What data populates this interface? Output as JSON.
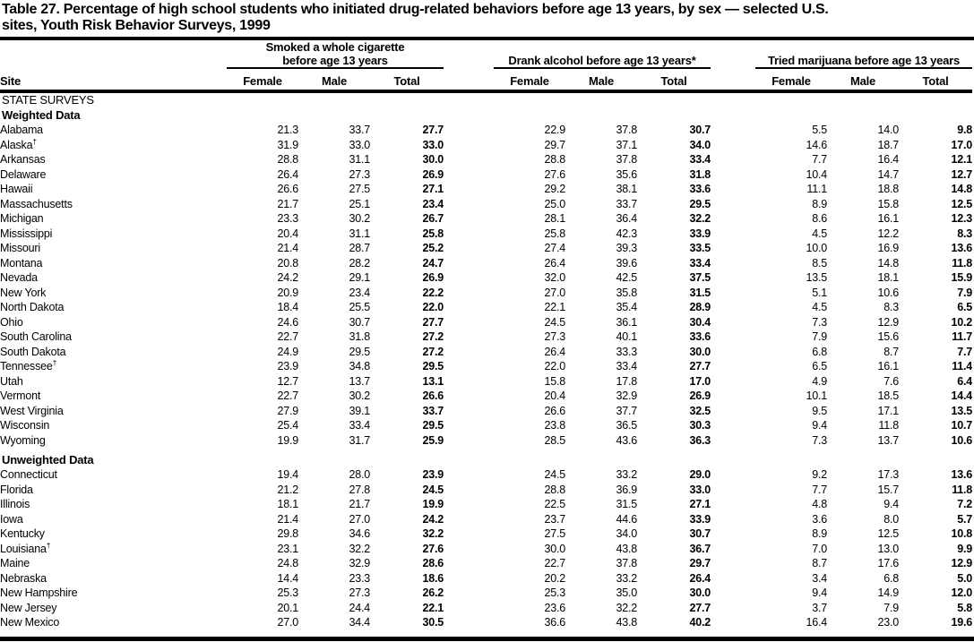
{
  "title": {
    "line1": "Table 27. Percentage of high school students who initiated drug-related behaviors before age 13 years, by sex — selected U.S.",
    "line2": "sites, Youth Risk Behavior Surveys, 1999"
  },
  "colors": {
    "text": "#000000",
    "background": "#ffffff",
    "rule": "#000000"
  },
  "table": {
    "site_header": "Site",
    "groups": [
      {
        "line1": "Smoked a whole cigarette",
        "line2": "before age 13 years"
      },
      {
        "line1": "",
        "line2": "Drank alcohol before age 13 years*"
      },
      {
        "line1": "",
        "line2": "Tried marijuana before age 13 years"
      }
    ],
    "col_headers": [
      "Female",
      "Male",
      "Total"
    ],
    "sections": [
      {
        "heading": "STATE SURVEYS",
        "subheading": "Weighted Data",
        "rows": [
          {
            "site": "Alabama",
            "mark": "",
            "values": [
              "21.3",
              "33.7",
              "27.7",
              "22.9",
              "37.8",
              "30.7",
              "5.5",
              "14.0",
              "9.8"
            ]
          },
          {
            "site": "Alaska",
            "mark": "†",
            "values": [
              "31.9",
              "33.0",
              "33.0",
              "29.7",
              "37.1",
              "34.0",
              "14.6",
              "18.7",
              "17.0"
            ]
          },
          {
            "site": "Arkansas",
            "mark": "",
            "values": [
              "28.8",
              "31.1",
              "30.0",
              "28.8",
              "37.8",
              "33.4",
              "7.7",
              "16.4",
              "12.1"
            ]
          },
          {
            "site": "Delaware",
            "mark": "",
            "values": [
              "26.4",
              "27.3",
              "26.9",
              "27.6",
              "35.6",
              "31.8",
              "10.4",
              "14.7",
              "12.7"
            ]
          },
          {
            "site": "Hawaii",
            "mark": "",
            "values": [
              "26.6",
              "27.5",
              "27.1",
              "29.2",
              "38.1",
              "33.6",
              "11.1",
              "18.8",
              "14.8"
            ]
          },
          {
            "site": "Massachusetts",
            "mark": "",
            "values": [
              "21.7",
              "25.1",
              "23.4",
              "25.0",
              "33.7",
              "29.5",
              "8.9",
              "15.8",
              "12.5"
            ]
          },
          {
            "site": "Michigan",
            "mark": "",
            "values": [
              "23.3",
              "30.2",
              "26.7",
              "28.1",
              "36.4",
              "32.2",
              "8.6",
              "16.1",
              "12.3"
            ]
          },
          {
            "site": "Mississippi",
            "mark": "",
            "values": [
              "20.4",
              "31.1",
              "25.8",
              "25.8",
              "42.3",
              "33.9",
              "4.5",
              "12.2",
              "8.3"
            ]
          },
          {
            "site": "Missouri",
            "mark": "",
            "values": [
              "21.4",
              "28.7",
              "25.2",
              "27.4",
              "39.3",
              "33.5",
              "10.0",
              "16.9",
              "13.6"
            ]
          },
          {
            "site": "Montana",
            "mark": "",
            "values": [
              "20.8",
              "28.2",
              "24.7",
              "26.4",
              "39.6",
              "33.4",
              "8.5",
              "14.8",
              "11.8"
            ]
          },
          {
            "site": "Nevada",
            "mark": "",
            "values": [
              "24.2",
              "29.1",
              "26.9",
              "32.0",
              "42.5",
              "37.5",
              "13.5",
              "18.1",
              "15.9"
            ]
          },
          {
            "site": "New York",
            "mark": "",
            "values": [
              "20.9",
              "23.4",
              "22.2",
              "27.0",
              "35.8",
              "31.5",
              "5.1",
              "10.6",
              "7.9"
            ]
          },
          {
            "site": "North Dakota",
            "mark": "",
            "values": [
              "18.4",
              "25.5",
              "22.0",
              "22.1",
              "35.4",
              "28.9",
              "4.5",
              "8.3",
              "6.5"
            ]
          },
          {
            "site": "Ohio",
            "mark": "",
            "values": [
              "24.6",
              "30.7",
              "27.7",
              "24.5",
              "36.1",
              "30.4",
              "7.3",
              "12.9",
              "10.2"
            ]
          },
          {
            "site": "South Carolina",
            "mark": "",
            "values": [
              "22.7",
              "31.8",
              "27.2",
              "27.3",
              "40.1",
              "33.6",
              "7.9",
              "15.6",
              "11.7"
            ]
          },
          {
            "site": "South Dakota",
            "mark": "",
            "values": [
              "24.9",
              "29.5",
              "27.2",
              "26.4",
              "33.3",
              "30.0",
              "6.8",
              "8.7",
              "7.7"
            ]
          },
          {
            "site": "Tennessee",
            "mark": "†",
            "values": [
              "23.9",
              "34.8",
              "29.5",
              "22.0",
              "33.4",
              "27.7",
              "6.5",
              "16.1",
              "11.4"
            ]
          },
          {
            "site": "Utah",
            "mark": "",
            "values": [
              "12.7",
              "13.7",
              "13.1",
              "15.8",
              "17.8",
              "17.0",
              "4.9",
              "7.6",
              "6.4"
            ]
          },
          {
            "site": "Vermont",
            "mark": "",
            "values": [
              "22.7",
              "30.2",
              "26.6",
              "20.4",
              "32.9",
              "26.9",
              "10.1",
              "18.5",
              "14.4"
            ]
          },
          {
            "site": "West Virginia",
            "mark": "",
            "values": [
              "27.9",
              "39.1",
              "33.7",
              "26.6",
              "37.7",
              "32.5",
              "9.5",
              "17.1",
              "13.5"
            ]
          },
          {
            "site": "Wisconsin",
            "mark": "",
            "values": [
              "25.4",
              "33.4",
              "29.5",
              "23.8",
              "36.5",
              "30.3",
              "9.4",
              "11.8",
              "10.7"
            ]
          },
          {
            "site": "Wyoming",
            "mark": "",
            "values": [
              "19.9",
              "31.7",
              "25.9",
              "28.5",
              "43.6",
              "36.3",
              "7.3",
              "13.7",
              "10.6"
            ]
          }
        ]
      },
      {
        "heading": "",
        "subheading": "Unweighted Data",
        "rows": [
          {
            "site": "Connecticut",
            "mark": "",
            "values": [
              "19.4",
              "28.0",
              "23.9",
              "24.5",
              "33.2",
              "29.0",
              "9.2",
              "17.3",
              "13.6"
            ]
          },
          {
            "site": "Florida",
            "mark": "",
            "values": [
              "21.2",
              "27.8",
              "24.5",
              "28.8",
              "36.9",
              "33.0",
              "7.7",
              "15.7",
              "11.8"
            ]
          },
          {
            "site": "Illinois",
            "mark": "",
            "values": [
              "18.1",
              "21.7",
              "19.9",
              "22.5",
              "31.5",
              "27.1",
              "4.8",
              "9.4",
              "7.2"
            ]
          },
          {
            "site": "Iowa",
            "mark": "",
            "values": [
              "21.4",
              "27.0",
              "24.2",
              "23.7",
              "44.6",
              "33.9",
              "3.6",
              "8.0",
              "5.7"
            ]
          },
          {
            "site": "Kentucky",
            "mark": "",
            "values": [
              "29.8",
              "34.6",
              "32.2",
              "27.5",
              "34.0",
              "30.7",
              "8.9",
              "12.5",
              "10.8"
            ]
          },
          {
            "site": "Louisiana",
            "mark": "†",
            "values": [
              "23.1",
              "32.2",
              "27.6",
              "30.0",
              "43.8",
              "36.7",
              "7.0",
              "13.0",
              "9.9"
            ]
          },
          {
            "site": "Maine",
            "mark": "",
            "values": [
              "24.8",
              "32.9",
              "28.6",
              "22.7",
              "37.8",
              "29.7",
              "8.7",
              "17.6",
              "12.9"
            ]
          },
          {
            "site": "Nebraska",
            "mark": "",
            "values": [
              "14.4",
              "23.3",
              "18.6",
              "20.2",
              "33.2",
              "26.4",
              "3.4",
              "6.8",
              "5.0"
            ]
          },
          {
            "site": "New Hampshire",
            "mark": "",
            "values": [
              "25.3",
              "27.3",
              "26.2",
              "25.3",
              "35.0",
              "30.0",
              "9.4",
              "14.9",
              "12.0"
            ]
          },
          {
            "site": "New Jersey",
            "mark": "",
            "values": [
              "20.1",
              "24.4",
              "22.1",
              "23.6",
              "32.2",
              "27.7",
              "3.7",
              "7.9",
              "5.8"
            ]
          },
          {
            "site": "New Mexico",
            "mark": "",
            "values": [
              "27.0",
              "34.4",
              "30.5",
              "36.6",
              "43.8",
              "40.2",
              "16.4",
              "23.0",
              "19.6"
            ]
          }
        ]
      }
    ]
  }
}
